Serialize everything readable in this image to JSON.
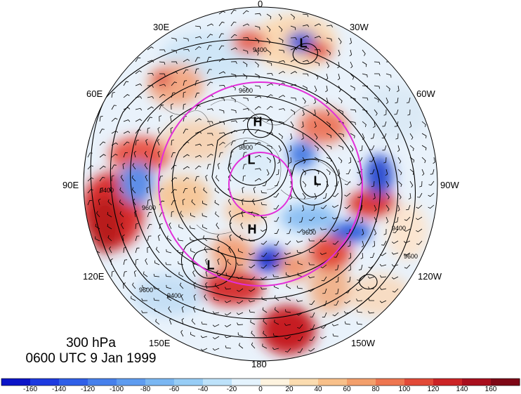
{
  "title": {
    "level": "300 hPa",
    "time": "0600 UTC 9 Jan 1999"
  },
  "longitude_labels": {
    "top": "0",
    "bottom": "180",
    "lon_30e": "30E",
    "lon_30w": "30W",
    "lon_60e": "60E",
    "lon_60w": "60W",
    "lon_90e": "90E",
    "lon_90w": "90W",
    "lon_120e": "120E",
    "lon_120w": "120W",
    "lon_150e": "150E",
    "lon_150w": "150W"
  },
  "pressure_systems": [
    {
      "id": "low-1",
      "text": "L"
    },
    {
      "id": "high-1",
      "text": "H"
    },
    {
      "id": "low-2",
      "text": "L"
    },
    {
      "id": "low-3",
      "text": "L"
    },
    {
      "id": "high-2",
      "text": "H"
    },
    {
      "id": "low-4",
      "text": "L"
    }
  ],
  "contour_labels": [
    "9400",
    "9600",
    "9800",
    "9400",
    "9600",
    "9600",
    "9400",
    "9600",
    "9400",
    "9600"
  ],
  "colorbar": {
    "ticks": [
      "-160",
      "-140",
      "-120",
      "-100",
      "-80",
      "-60",
      "-40",
      "-20",
      "0",
      "20",
      "40",
      "60",
      "80",
      "100",
      "120",
      "140",
      "160"
    ],
    "colors": [
      "#0b14c8",
      "#1d3ae0",
      "#2f5fe8",
      "#4680ec",
      "#5e9cf0",
      "#7ab7f3",
      "#97cdf6",
      "#bde2fa",
      "#e4f3fd",
      "#fdf3df",
      "#fbdcb0",
      "#f8c08a",
      "#f39f6b",
      "#ee7650",
      "#e24a38",
      "#cc2426",
      "#a90f1e",
      "#7e0716"
    ]
  },
  "accent_colors": {
    "magenta_circle": "#e22fd9",
    "contour": "#000000"
  }
}
